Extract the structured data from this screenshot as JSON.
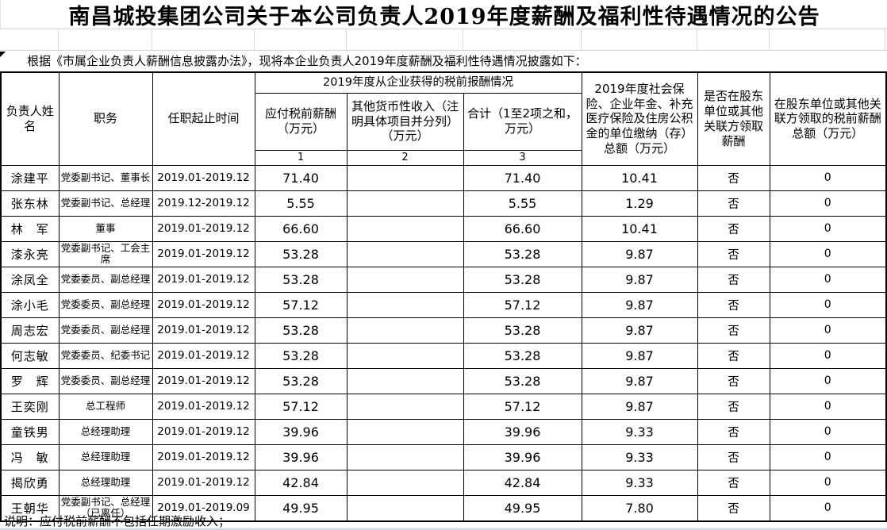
{
  "page": {
    "title": "南昌城投集团公司关于本公司负责人2019年度薪酬及福利性待遇情况的公告",
    "intro": "根据《市属企业负责人薪酬信息披露办法》，现将本企业负责人2019年度薪酬及福利性待遇情况披露如下：",
    "footnote": "说明：应付税前薪酬不包括任期激励收入；"
  },
  "colors": {
    "table_border": "#000000",
    "faint_grid": "#d4d4d4",
    "bottom_edge": "#bcd1e5"
  },
  "table": {
    "headers": {
      "name": "负责人姓名",
      "position": "职务",
      "tenure": "任职起止时间",
      "compensation_group": "2019年度从企业获得的税前报酬情况",
      "salary": "应付税前薪酬（万元）",
      "other_income": "其他货币性收入（注明具体项目并分列）（万元）",
      "total": "合计（1至2项之和，万元）",
      "insurance": "2019年度社会保险、企业年金、补充医疗保险及住房公积金的单位缴纳（存）总额（万元）",
      "shareholder_paid": "是否在股东单位或其他关联方领取薪酬",
      "shareholder_amount": "在股东单位或其他关联方领取的税前薪酬总额（万元）",
      "col_numbers": [
        "1",
        "2",
        "3"
      ]
    },
    "rows": [
      {
        "name": "涂建平",
        "position": "党委副书记、董事长",
        "tenure": "2019.01-2019.12",
        "salary": "71.40",
        "other": "",
        "total": "71.40",
        "insurance": "10.41",
        "shareholder": "否",
        "shareholder_amount": "0"
      },
      {
        "name": "张东林",
        "position": "党委副书记、总经理",
        "tenure": "2019.12-2019.12",
        "salary": "5.55",
        "other": "",
        "total": "5.55",
        "insurance": "1.29",
        "shareholder": "否",
        "shareholder_amount": "0"
      },
      {
        "name": "林　军",
        "position": "董事",
        "tenure": "2019.01-2019.12",
        "salary": "66.60",
        "other": "",
        "total": "66.60",
        "insurance": "10.41",
        "shareholder": "否",
        "shareholder_amount": "0"
      },
      {
        "name": "漆永亮",
        "position": "党委副书记、工会主席",
        "tenure": "2019.01-2019.12",
        "salary": "53.28",
        "other": "",
        "total": "53.28",
        "insurance": "9.87",
        "shareholder": "否",
        "shareholder_amount": "0"
      },
      {
        "name": "涂凤全",
        "position": "党委委员、副总经理",
        "tenure": "2019.01-2019.12",
        "salary": "53.28",
        "other": "",
        "total": "53.28",
        "insurance": "9.87",
        "shareholder": "否",
        "shareholder_amount": "0"
      },
      {
        "name": "涂小毛",
        "position": "党委委员、副总经理",
        "tenure": "2019.01-2019.12",
        "salary": "57.12",
        "other": "",
        "total": "57.12",
        "insurance": "9.87",
        "shareholder": "否",
        "shareholder_amount": "0"
      },
      {
        "name": "周志宏",
        "position": "党委委员、副总经理",
        "tenure": "2019.01-2019.12",
        "salary": "53.28",
        "other": "",
        "total": "53.28",
        "insurance": "9.87",
        "shareholder": "否",
        "shareholder_amount": "0"
      },
      {
        "name": "何志敏",
        "position": "党委委员、纪委书记",
        "tenure": "2019.01-2019.12",
        "salary": "53.28",
        "other": "",
        "total": "53.28",
        "insurance": "9.87",
        "shareholder": "否",
        "shareholder_amount": "0"
      },
      {
        "name": "罗　辉",
        "position": "党委委员、副总经理",
        "tenure": "2019.01-2019.12",
        "salary": "53.28",
        "other": "",
        "total": "53.28",
        "insurance": "9.87",
        "shareholder": "否",
        "shareholder_amount": "0"
      },
      {
        "name": "王奕刚",
        "position": "总工程师",
        "tenure": "2019.01-2019.12",
        "salary": "57.12",
        "other": "",
        "total": "57.12",
        "insurance": "9.87",
        "shareholder": "否",
        "shareholder_amount": "0"
      },
      {
        "name": "童铁男",
        "position": "总经理助理",
        "tenure": "2019.01-2019.12",
        "salary": "39.96",
        "other": "",
        "total": "39.96",
        "insurance": "9.33",
        "shareholder": "否",
        "shareholder_amount": "0"
      },
      {
        "name": "冯　敏",
        "position": "总经理助理",
        "tenure": "2019.01-2019.12",
        "salary": "39.96",
        "other": "",
        "total": "39.96",
        "insurance": "9.33",
        "shareholder": "否",
        "shareholder_amount": "0"
      },
      {
        "name": "揭欣勇",
        "position": "总经理助理",
        "tenure": "2019.01-2019.12",
        "salary": "42.84",
        "other": "",
        "total": "42.84",
        "insurance": "9.33",
        "shareholder": "否",
        "shareholder_amount": "0"
      },
      {
        "name": "王朝华",
        "position": "党委副书记、总经理（已离任）",
        "tenure": "2019.01-2019.09",
        "salary": "49.95",
        "other": "",
        "total": "49.95",
        "insurance": "7.80",
        "shareholder": "否",
        "shareholder_amount": "0"
      }
    ]
  }
}
